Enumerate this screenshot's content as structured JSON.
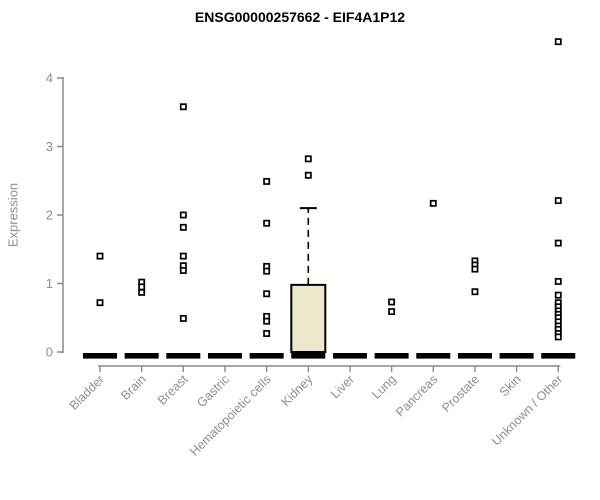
{
  "chart_data": {
    "type": "boxplot",
    "title": "ENSG00000257662 - EIF4A1P12",
    "ylabel": "Expression",
    "xlabel": "",
    "ylim": [
      0,
      4.6
    ],
    "yticks": [
      0,
      1,
      2,
      3,
      4
    ],
    "grid": false,
    "legend": null,
    "categories": [
      "Bladder",
      "Brain",
      "Breast",
      "Gastric",
      "Hematopoietic cells",
      "Kidney",
      "Liver",
      "Lung",
      "Pancreas",
      "Prostate",
      "Skin",
      "Unknown / Other"
    ],
    "boxes": [
      {
        "category": "Bladder",
        "median": 0,
        "q1": 0,
        "q3": 0,
        "whisker_low": 0,
        "whisker_high": 0,
        "outliers": [
          1.4,
          0.72
        ]
      },
      {
        "category": "Brain",
        "median": 0,
        "q1": 0,
        "q3": 0,
        "whisker_low": 0,
        "whisker_high": 0,
        "outliers": [
          1.02,
          0.95,
          0.87
        ]
      },
      {
        "category": "Breast",
        "median": 0,
        "q1": 0,
        "q3": 0,
        "whisker_low": 0,
        "whisker_high": 0,
        "outliers": [
          3.58,
          2.0,
          1.82,
          1.4,
          1.26,
          1.19,
          0.49
        ]
      },
      {
        "category": "Gastric",
        "median": 0,
        "q1": 0,
        "q3": 0,
        "whisker_low": 0,
        "whisker_high": 0,
        "outliers": []
      },
      {
        "category": "Hematopoietic cells",
        "median": 0,
        "q1": 0,
        "q3": 0,
        "whisker_low": 0,
        "whisker_high": 0,
        "outliers": [
          2.49,
          1.88,
          1.25,
          1.18,
          0.85,
          0.52,
          0.45,
          0.27
        ]
      },
      {
        "category": "Kidney",
        "median": 0,
        "q1": 0,
        "q3": 0.98,
        "whisker_low": 0,
        "whisker_high": 2.1,
        "outliers": [
          2.82,
          2.58
        ]
      },
      {
        "category": "Liver",
        "median": 0,
        "q1": 0,
        "q3": 0,
        "whisker_low": 0,
        "whisker_high": 0,
        "outliers": []
      },
      {
        "category": "Lung",
        "median": 0,
        "q1": 0,
        "q3": 0,
        "whisker_low": 0,
        "whisker_high": 0,
        "outliers": [
          0.73,
          0.59
        ]
      },
      {
        "category": "Pancreas",
        "median": 0,
        "q1": 0,
        "q3": 0,
        "whisker_low": 0,
        "whisker_high": 0,
        "outliers": [
          2.17
        ]
      },
      {
        "category": "Prostate",
        "median": 0,
        "q1": 0,
        "q3": 0,
        "whisker_low": 0,
        "whisker_high": 0,
        "outliers": [
          1.33,
          1.27,
          1.21,
          0.88
        ]
      },
      {
        "category": "Skin",
        "median": 0,
        "q1": 0,
        "q3": 0,
        "whisker_low": 0,
        "whisker_high": 0,
        "outliers": []
      },
      {
        "category": "Unknown / Other",
        "median": 0,
        "q1": 0,
        "q3": 0,
        "whisker_low": 0,
        "whisker_high": 0,
        "outliers": [
          4.53,
          2.21,
          1.59,
          1.03,
          0.83,
          0.72,
          0.66,
          0.6,
          0.55,
          0.5,
          0.44,
          0.38,
          0.33,
          0.27,
          0.22
        ]
      }
    ],
    "colors": {
      "box_fill": "#ECE8CC",
      "box_stroke": "#000000",
      "median": "#000000",
      "point_stroke": "#000000",
      "point_fill": "#ffffff",
      "axis": "#8a8a8a",
      "tick_label": "#8e8e8e",
      "title": "#000000",
      "background": "#ffffff"
    }
  }
}
